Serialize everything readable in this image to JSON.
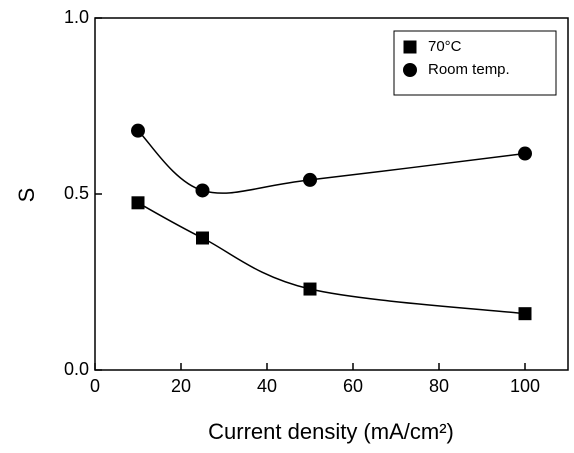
{
  "chart_data": {
    "type": "scatter",
    "x_label": "Current density (mA/cm²)",
    "y_label": "S",
    "xlim": [
      0,
      110
    ],
    "xticks": [
      0,
      20,
      40,
      60,
      80,
      100
    ],
    "ylim": [
      0,
      1
    ],
    "yticks": [
      {
        "value": 0,
        "label": "0.0"
      },
      {
        "value": 0.5,
        "label": "0.5"
      },
      {
        "value": 1,
        "label": "1.0"
      }
    ],
    "legend": "upper right",
    "series": [
      {
        "name": "70°C",
        "color": "#000000",
        "marker": "square",
        "x": [
          10,
          25,
          50,
          100
        ],
        "values": [
          0.475,
          0.375,
          0.23,
          0.16
        ]
      },
      {
        "name": "Room temp.",
        "color": "#000000",
        "marker": "circle",
        "x": [
          10,
          25,
          50,
          100
        ],
        "values": [
          0.68,
          0.51,
          0.54,
          0.615
        ]
      }
    ]
  }
}
